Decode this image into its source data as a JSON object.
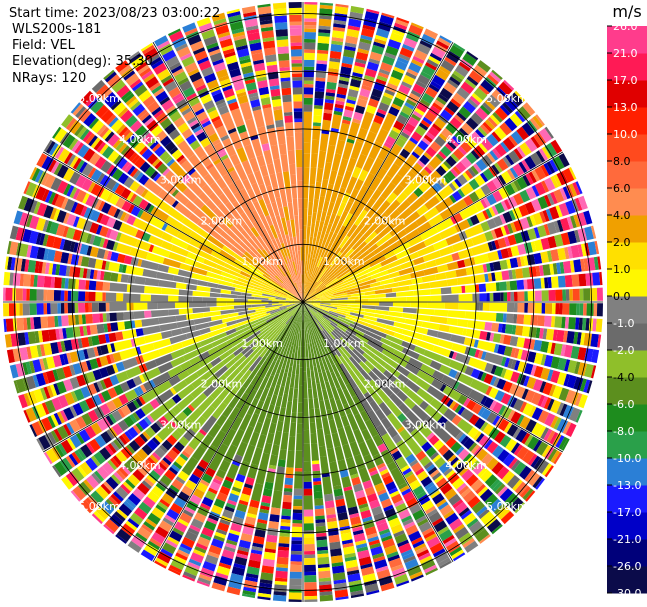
{
  "header": {
    "start_time": "Start time: 2023/08/23 03:00:22",
    "instrument": "WLS200s-181",
    "field": "Field: VEL",
    "elevation": "Elevation(deg): 35.30",
    "nrays": "NRays: 120"
  },
  "chart_data": {
    "type": "ppi",
    "field": "VEL",
    "units": "m/s",
    "nrays": 120,
    "elevation_deg": 35.3,
    "max_range_km": 5.2,
    "range_rings_km": [
      1,
      2,
      3,
      4,
      5
    ],
    "ring_labels": {
      "1": "1.00km",
      "2": "2.00km",
      "3": "3.00km",
      "4": "4.00km",
      "5": "5.00km"
    },
    "signal_range_km": 3.0,
    "pattern": [
      {
        "az_start": 0,
        "az_end": 20,
        "velocity": 3.0
      },
      {
        "az_start": 20,
        "az_end": 60,
        "velocity": 2.5
      },
      {
        "az_start": 60,
        "az_end": 85,
        "velocity": 1.5
      },
      {
        "az_start": 85,
        "az_end": 110,
        "velocity": 0.5
      },
      {
        "az_start": 110,
        "az_end": 150,
        "velocity": -2.0
      },
      {
        "az_start": 150,
        "az_end": 215,
        "velocity": -5.0
      },
      {
        "az_start": 215,
        "az_end": 250,
        "velocity": -2.5
      },
      {
        "az_start": 250,
        "az_end": 285,
        "velocity": 0.0
      },
      {
        "az_start": 285,
        "az_end": 305,
        "velocity": 1.5
      },
      {
        "az_start": 305,
        "az_end": 360,
        "velocity": 4.5
      }
    ],
    "colorbar": {
      "unit": "m/s",
      "ticks": [
        -30.0,
        -26.0,
        -21.0,
        -17.0,
        -13.0,
        -10.0,
        -8.0,
        -6.0,
        -4.0,
        -2.0,
        -1.0,
        0.0,
        1.0,
        2.0,
        4.0,
        6.0,
        8.0,
        10.0,
        13.0,
        17.0,
        21.0,
        26.0
      ],
      "tick_labels": [
        "-30.0",
        "-26.0",
        "-21.0",
        "-17.0",
        "-13.0",
        "-10.0",
        "-8.0",
        "-6.0",
        "-4.0",
        "-2.0",
        "-1.0",
        "0.0",
        "1.0",
        "2.0",
        "4.0",
        "6.0",
        "8.0",
        "10.0",
        "13.0",
        "17.0",
        "21.0",
        "26.0"
      ],
      "colors": [
        "#0b0b4a",
        "#00007a",
        "#0000c8",
        "#1a1aff",
        "#2b7fd6",
        "#2aa04a",
        "#1e8c1e",
        "#5c8f1e",
        "#8fbf2a",
        "#6b6b6b",
        "#808080",
        "#fff700",
        "#ffe000",
        "#f0a000",
        "#ff8c50",
        "#ff6a3c",
        "#ff4a1e",
        "#ff2000",
        "#e00000",
        "#ff1a55",
        "#ff3c8c",
        "#ff69b4"
      ]
    }
  }
}
